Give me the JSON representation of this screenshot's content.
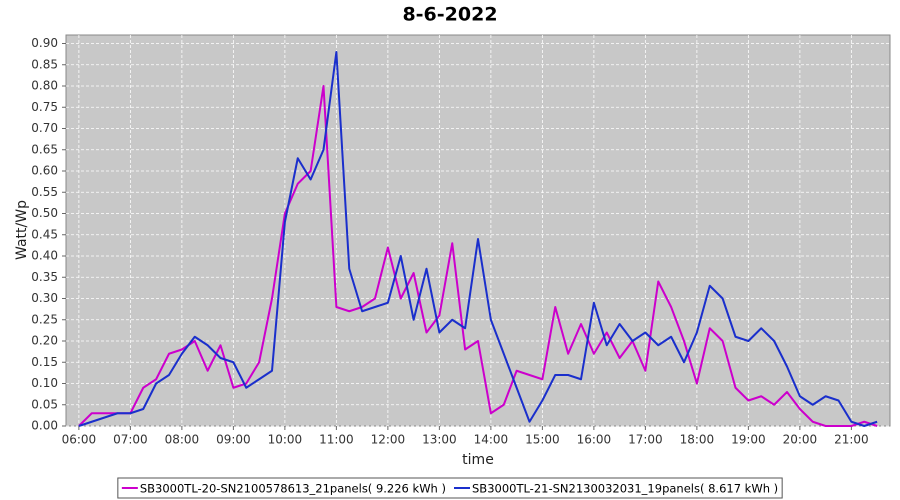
{
  "chart_data": {
    "type": "line",
    "title": "8-6-2022",
    "x_label": "time",
    "y_label": "Watt/Wp",
    "x": [
      6,
      6.25,
      6.5,
      6.75,
      7,
      7.25,
      7.5,
      7.75,
      8,
      8.25,
      8.5,
      8.75,
      9,
      9.25,
      9.5,
      9.75,
      10,
      10.25,
      10.5,
      10.75,
      11,
      11.25,
      11.5,
      11.75,
      12,
      12.25,
      12.5,
      12.75,
      13,
      13.25,
      13.5,
      13.75,
      14,
      14.25,
      14.5,
      14.75,
      15,
      15.25,
      15.5,
      15.75,
      16,
      16.25,
      16.5,
      16.75,
      17,
      17.25,
      17.5,
      17.75,
      18,
      18.25,
      18.5,
      18.75,
      19,
      19.25,
      19.5,
      19.75,
      20,
      20.25,
      20.5,
      20.75,
      21,
      21.25,
      21.5
    ],
    "series": [
      {
        "name": "SB3000TL-20-SN2100578613_21panels( 9.226 kWh )",
        "color": "#cc00cc",
        "values": [
          0,
          0.03,
          0.03,
          0.03,
          0.03,
          0.09,
          0.11,
          0.17,
          0.18,
          0.2,
          0.13,
          0.19,
          0.09,
          0.1,
          0.15,
          0.3,
          0.5,
          0.57,
          0.6,
          0.8,
          0.28,
          0.27,
          0.28,
          0.3,
          0.42,
          0.3,
          0.36,
          0.22,
          0.26,
          0.43,
          0.18,
          0.2,
          0.03,
          0.05,
          0.13,
          0.12,
          0.11,
          0.28,
          0.17,
          0.24,
          0.17,
          0.22,
          0.16,
          0.2,
          0.13,
          0.34,
          0.28,
          0.2,
          0.1,
          0.23,
          0.2,
          0.09,
          0.06,
          0.07,
          0.05,
          0.08,
          0.04,
          0.01,
          0,
          0,
          0,
          0.01,
          0
        ]
      },
      {
        "name": "SB3000TL-21-SN2130032031_19panels( 8.617 kWh )",
        "color": "#1a2fcc",
        "values": [
          0,
          0.01,
          0.02,
          0.03,
          0.03,
          0.04,
          0.1,
          0.12,
          0.17,
          0.21,
          0.19,
          0.16,
          0.15,
          0.09,
          0.11,
          0.13,
          0.48,
          0.63,
          0.58,
          0.65,
          0.88,
          0.37,
          0.27,
          0.28,
          0.29,
          0.4,
          0.25,
          0.37,
          0.22,
          0.25,
          0.23,
          0.44,
          0.25,
          0.17,
          0.09,
          0.01,
          0.06,
          0.12,
          0.12,
          0.11,
          0.29,
          0.19,
          0.24,
          0.2,
          0.22,
          0.19,
          0.21,
          0.15,
          0.22,
          0.33,
          0.3,
          0.21,
          0.2,
          0.23,
          0.2,
          0.14,
          0.07,
          0.05,
          0.07,
          0.06,
          0.01,
          0,
          0.01
        ]
      }
    ],
    "xlim": [
      5.75,
      21.75
    ],
    "xticks": [
      {
        "value": 6,
        "label": "06:00"
      },
      {
        "value": 7,
        "label": "07:00"
      },
      {
        "value": 8,
        "label": "08:00"
      },
      {
        "value": 9,
        "label": "09:00"
      },
      {
        "value": 10,
        "label": "10:00"
      },
      {
        "value": 11,
        "label": "11:00"
      },
      {
        "value": 12,
        "label": "12:00"
      },
      {
        "value": 13,
        "label": "13:00"
      },
      {
        "value": 14,
        "label": "14:00"
      },
      {
        "value": 15,
        "label": "15:00"
      },
      {
        "value": 16,
        "label": "16:00"
      },
      {
        "value": 17,
        "label": "17:00"
      },
      {
        "value": 18,
        "label": "18:00"
      },
      {
        "value": 19,
        "label": "19:00"
      },
      {
        "value": 20,
        "label": "20:00"
      },
      {
        "value": 21,
        "label": "21:00"
      }
    ],
    "ylim": [
      0,
      0.92
    ],
    "yticks": [
      {
        "value": 0,
        "label": "0.00"
      },
      {
        "value": 0.05,
        "label": "0.05"
      },
      {
        "value": 0.1,
        "label": "0.10"
      },
      {
        "value": 0.15,
        "label": "0.15"
      },
      {
        "value": 0.2,
        "label": "0.20"
      },
      {
        "value": 0.25,
        "label": "0.25"
      },
      {
        "value": 0.3,
        "label": "0.30"
      },
      {
        "value": 0.35,
        "label": "0.35"
      },
      {
        "value": 0.4,
        "label": "0.40"
      },
      {
        "value": 0.45,
        "label": "0.45"
      },
      {
        "value": 0.5,
        "label": "0.50"
      },
      {
        "value": 0.55,
        "label": "0.55"
      },
      {
        "value": 0.6,
        "label": "0.60"
      },
      {
        "value": 0.65,
        "label": "0.65"
      },
      {
        "value": 0.7,
        "label": "0.70"
      },
      {
        "value": 0.75,
        "label": "0.75"
      },
      {
        "value": 0.8,
        "label": "0.80"
      },
      {
        "value": 0.85,
        "label": "0.85"
      },
      {
        "value": 0.9,
        "label": "0.90"
      }
    ],
    "grid": true,
    "legend_position": "bottom"
  }
}
